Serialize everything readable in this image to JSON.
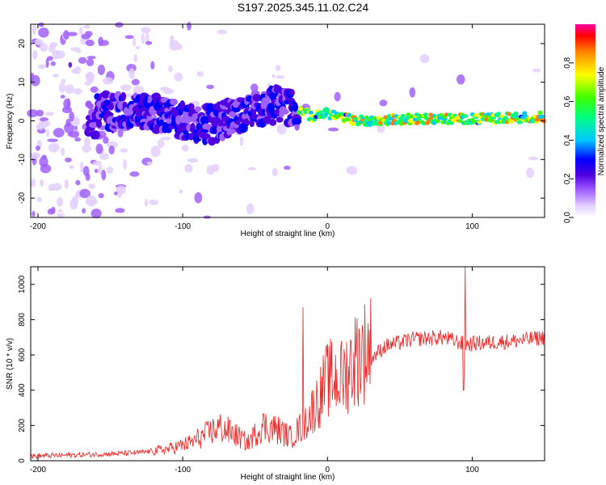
{
  "chart_data": [
    {
      "type": "heatmap",
      "title": "S197.2025.345.11.02.C24",
      "xlabel": "Height of straight line (km)",
      "ylabel": "Frequency (Hz)",
      "xlim": [
        -205,
        150
      ],
      "ylim": [
        -25,
        25
      ],
      "xticks": [
        -200,
        -100,
        0,
        100
      ],
      "xtick_labels": [
        "-200",
        "-100",
        "0",
        "100"
      ],
      "yticks": [
        -20,
        -10,
        0,
        10,
        20
      ],
      "ytick_labels": [
        "-20",
        "-10",
        "0",
        "10",
        "20"
      ],
      "colorbar": {
        "label": "Normalized spectral amplitude",
        "range": [
          0,
          1
        ],
        "ticks": [
          0.0,
          0.2,
          0.4,
          0.6,
          0.8
        ],
        "tick_labels": [
          "0.0",
          "0.2",
          "0.4",
          "0.6",
          "0.8"
        ],
        "colormap": [
          "#ffffff",
          "#e3d0ff",
          "#a060ff",
          "#5000e0",
          "#0000ff",
          "#00c8ff",
          "#00ff80",
          "#40ff00",
          "#ffff00",
          "#ff8000",
          "#ff0000",
          "#ff00a0"
        ]
      },
      "description_points": {
        "ridge_center_hz": [
          {
            "x": -160,
            "y": 3
          },
          {
            "x": -140,
            "y": 2
          },
          {
            "x": -120,
            "y": 2
          },
          {
            "x": -100,
            "y": 0
          },
          {
            "x": -80,
            "y": -1
          },
          {
            "x": -60,
            "y": 2
          },
          {
            "x": -40,
            "y": 4
          },
          {
            "x": -30,
            "y": 4
          },
          {
            "x": -20,
            "y": 3
          },
          {
            "x": -10,
            "y": 1
          },
          {
            "x": 0,
            "y": 2
          },
          {
            "x": 20,
            "y": 0
          },
          {
            "x": 60,
            "y": 0.5
          },
          {
            "x": 100,
            "y": 0.5
          },
          {
            "x": 150,
            "y": 1
          }
        ]
      }
    },
    {
      "type": "line",
      "title": "",
      "xlabel": "Height of straight line (km)",
      "ylabel": "SNR (10 * v/v)",
      "xlim": [
        -205,
        150
      ],
      "ylim": [
        0,
        1100
      ],
      "xticks": [
        -200,
        -100,
        0,
        100
      ],
      "xtick_labels": [
        "-200",
        "-100",
        "0",
        "100"
      ],
      "yticks": [
        0,
        200,
        400,
        600,
        800,
        1000
      ],
      "ytick_labels": [
        "0",
        "200",
        "400",
        "600",
        "800",
        "1000"
      ],
      "series": [
        {
          "name": "SNR",
          "color": "#ee2222",
          "trend": [
            {
              "x": -205,
              "y": 20
            },
            {
              "x": -160,
              "y": 30
            },
            {
              "x": -130,
              "y": 40
            },
            {
              "x": -110,
              "y": 60
            },
            {
              "x": -95,
              "y": 90
            },
            {
              "x": -85,
              "y": 130
            },
            {
              "x": -75,
              "y": 170
            },
            {
              "x": -65,
              "y": 140
            },
            {
              "x": -55,
              "y": 90
            },
            {
              "x": -45,
              "y": 180
            },
            {
              "x": -35,
              "y": 160
            },
            {
              "x": -25,
              "y": 120
            },
            {
              "x": -15,
              "y": 200
            },
            {
              "x": -5,
              "y": 330
            },
            {
              "x": 0,
              "y": 420
            },
            {
              "x": 10,
              "y": 420
            },
            {
              "x": 20,
              "y": 530
            },
            {
              "x": 30,
              "y": 580
            },
            {
              "x": 40,
              "y": 650
            },
            {
              "x": 60,
              "y": 690
            },
            {
              "x": 80,
              "y": 700
            },
            {
              "x": 95,
              "y": 660
            },
            {
              "x": 110,
              "y": 670
            },
            {
              "x": 130,
              "y": 680
            },
            {
              "x": 150,
              "y": 700
            }
          ],
          "spikes": [
            {
              "x": -17,
              "y": 870
            },
            {
              "x": 1,
              "y": 650
            },
            {
              "x": 95,
              "y": 1100
            },
            {
              "x": 94,
              "y": 400
            }
          ]
        }
      ]
    }
  ]
}
